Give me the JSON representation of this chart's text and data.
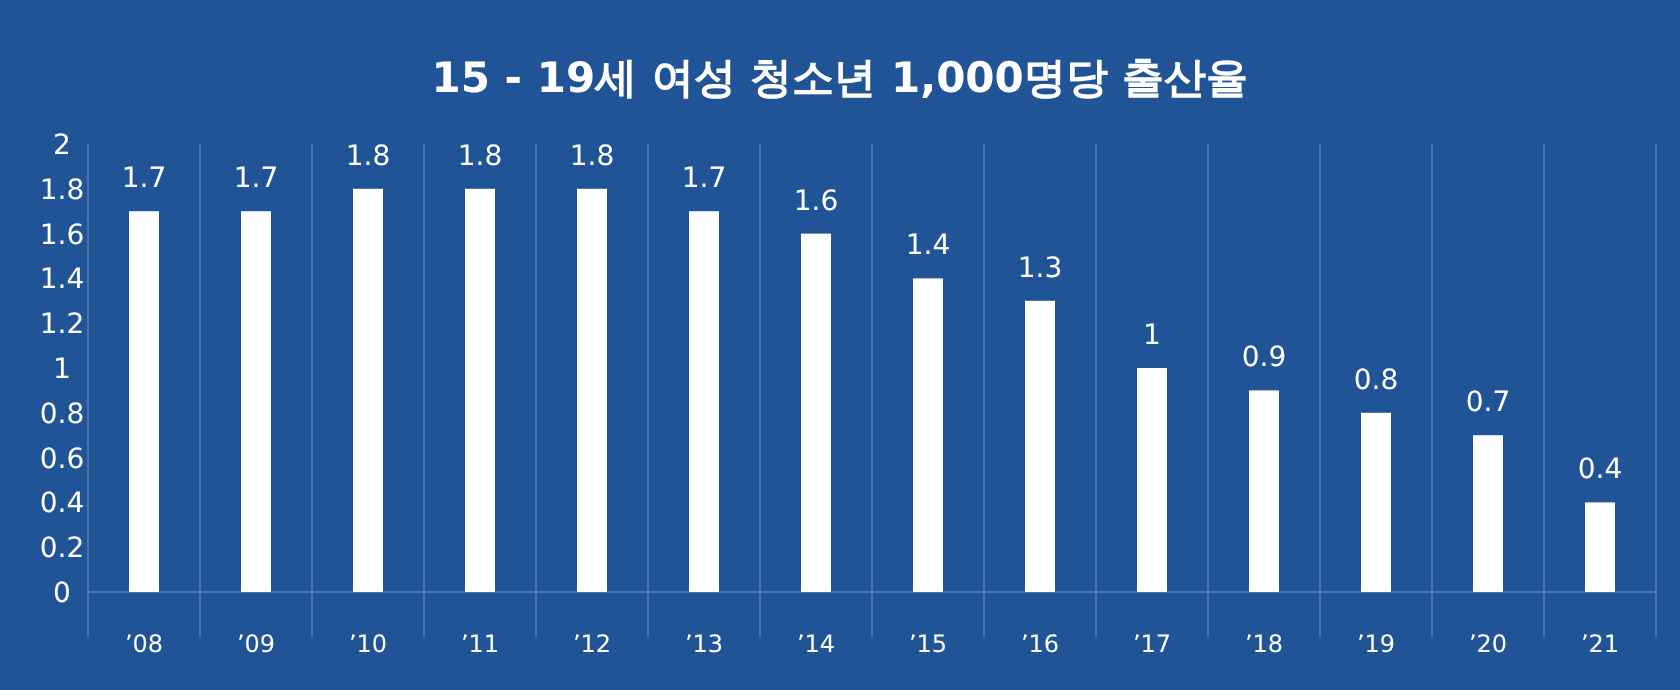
{
  "chart_data": {
    "type": "bar",
    "title": "15 - 19세 여성 청소년 1,000명당 출산율",
    "categories": [
      "’08",
      "’09",
      "’10",
      "’11",
      "’12",
      "’13",
      "’14",
      "’15",
      "’16",
      "’17",
      "’18",
      "’19",
      "’20",
      "’21"
    ],
    "values": [
      1.7,
      1.7,
      1.8,
      1.8,
      1.8,
      1.7,
      1.6,
      1.4,
      1.3,
      1,
      0.9,
      0.8,
      0.7,
      0.4
    ],
    "color": "#ffffff",
    "ylim": [
      0,
      2
    ],
    "yticks": [
      0,
      0.2,
      0.4,
      0.6,
      0.8,
      1,
      1.2,
      1.4,
      1.6,
      1.8,
      2
    ],
    "grid": "x",
    "data_labels": true
  }
}
